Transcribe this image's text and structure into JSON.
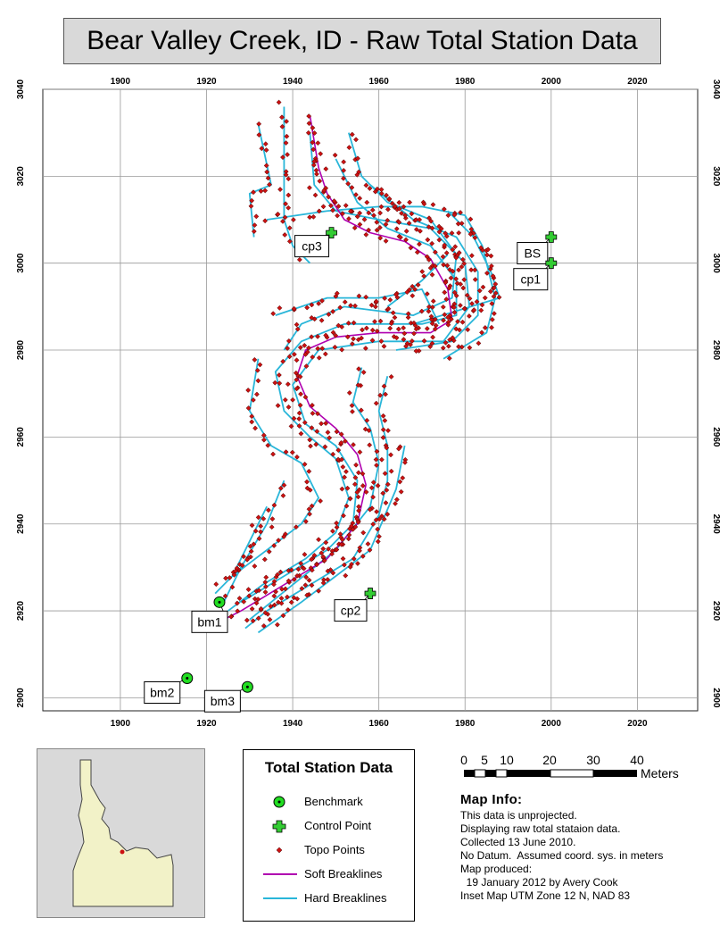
{
  "title": "Bear Valley Creek, ID - Raw Total Station Data",
  "map": {
    "x_ticks": [
      1900,
      1920,
      1940,
      1960,
      1980,
      2000,
      2020
    ],
    "y_ticks": [
      2900,
      2920,
      2940,
      2960,
      2980,
      3000,
      3020,
      3040
    ],
    "x_range": [
      1882,
      2034
    ],
    "y_range": [
      2897,
      3040
    ],
    "grid": true,
    "colors": {
      "benchmark": "#22dd22",
      "control": "#33cc33",
      "topo": "#cc1111",
      "soft": "#b000b0",
      "hard": "#29b6d9",
      "grid": "#999999"
    }
  },
  "benchmarks": [
    {
      "label": "bm1",
      "x": 1923,
      "y": 2922
    },
    {
      "label": "bm2",
      "x": 1915.5,
      "y": 2904.5
    },
    {
      "label": "bm3",
      "x": 1929.5,
      "y": 2902.5
    }
  ],
  "control_points": [
    {
      "label": "cp3",
      "x": 1949,
      "y": 3007
    },
    {
      "label": "BS",
      "x": 2000,
      "y": 3006
    },
    {
      "label": "cp1",
      "x": 2000,
      "y": 3000
    },
    {
      "label": "cp2",
      "x": 1958,
      "y": 2924
    }
  ],
  "soft_breakline": [
    [
      1944,
      3034
    ],
    [
      1946,
      3022
    ],
    [
      1948,
      3016
    ],
    [
      1952,
      3010
    ],
    [
      1958,
      3007
    ],
    [
      1966,
      3005
    ],
    [
      1972,
      3001
    ],
    [
      1976,
      2994
    ],
    [
      1977,
      2987
    ],
    [
      1972,
      2984
    ],
    [
      1960,
      2984
    ],
    [
      1950,
      2983
    ],
    [
      1943,
      2980
    ],
    [
      1941,
      2974
    ],
    [
      1944,
      2967
    ],
    [
      1950,
      2962
    ],
    [
      1955,
      2956
    ],
    [
      1957,
      2949
    ],
    [
      1955,
      2940
    ],
    [
      1948,
      2932
    ],
    [
      1938,
      2926
    ],
    [
      1928,
      2920
    ],
    [
      1924,
      2918
    ]
  ],
  "hard_breaklines": [
    [
      [
        1938,
        3036
      ],
      [
        1938,
        3010
      ],
      [
        1940,
        3004
      ],
      [
        1944,
        3000
      ]
    ],
    [
      [
        1932,
        3032
      ],
      [
        1935,
        3018
      ],
      [
        1930,
        3016
      ],
      [
        1931,
        3006
      ]
    ],
    [
      [
        1934,
        3010
      ],
      [
        1948,
        3012
      ],
      [
        1960,
        3013
      ],
      [
        1970,
        3013
      ],
      [
        1980,
        3011
      ],
      [
        1984,
        3004
      ],
      [
        1987,
        2992
      ],
      [
        1985,
        2984
      ],
      [
        1975,
        2978
      ]
    ],
    [
      [
        1958,
        3018
      ],
      [
        1968,
        3010
      ],
      [
        1978,
        3006
      ],
      [
        1983,
        2998
      ],
      [
        1983,
        2988
      ],
      [
        1977,
        2982
      ],
      [
        1964,
        2980
      ]
    ],
    [
      [
        1950,
        3024
      ],
      [
        1955,
        3014
      ],
      [
        1962,
        3008
      ],
      [
        1972,
        3004
      ],
      [
        1978,
        2996
      ],
      [
        1978,
        2988
      ],
      [
        1970,
        2986
      ],
      [
        1952,
        2986
      ],
      [
        1942,
        2982
      ],
      [
        1936,
        2975
      ],
      [
        1938,
        2966
      ],
      [
        1944,
        2960
      ],
      [
        1950,
        2955
      ],
      [
        1953,
        2946
      ],
      [
        1950,
        2938
      ],
      [
        1943,
        2932
      ],
      [
        1933,
        2926
      ],
      [
        1925,
        2920
      ]
    ],
    [
      [
        1944,
        3030
      ],
      [
        1945,
        3018
      ],
      [
        1950,
        3012
      ],
      [
        1960,
        3010
      ],
      [
        1972,
        3008
      ],
      [
        1980,
        3000
      ],
      [
        1981,
        2990
      ],
      [
        1975,
        2982
      ],
      [
        1960,
        2982
      ],
      [
        1946,
        2980
      ],
      [
        1940,
        2972
      ],
      [
        1943,
        2963
      ],
      [
        1950,
        2958
      ],
      [
        1955,
        2950
      ],
      [
        1954,
        2940
      ],
      [
        1948,
        2934
      ],
      [
        1938,
        2928
      ],
      [
        1928,
        2922
      ]
    ],
    [
      [
        1953,
        3030
      ],
      [
        1956,
        3020
      ],
      [
        1962,
        3014
      ],
      [
        1972,
        3010
      ],
      [
        1978,
        3002
      ],
      [
        1977,
        2992
      ],
      [
        1968,
        2988
      ],
      [
        1952,
        2990
      ],
      [
        1942,
        2986
      ],
      [
        1938,
        2980
      ]
    ],
    [
      [
        1936,
        2988
      ],
      [
        1948,
        2992
      ],
      [
        1960,
        2992
      ],
      [
        1970,
        2994
      ],
      [
        1974,
        2986
      ]
    ],
    [
      [
        1932,
        2978
      ],
      [
        1930,
        2966
      ],
      [
        1935,
        2958
      ],
      [
        1942,
        2954
      ],
      [
        1946,
        2946
      ],
      [
        1942,
        2940
      ],
      [
        1934,
        2934
      ],
      [
        1926,
        2928
      ],
      [
        1922,
        2924
      ]
    ],
    [
      [
        1962,
        2974
      ],
      [
        1960,
        2966
      ],
      [
        1962,
        2958
      ],
      [
        1962,
        2950
      ],
      [
        1960,
        2942
      ],
      [
        1954,
        2932
      ],
      [
        1944,
        2926
      ],
      [
        1934,
        2920
      ],
      [
        1929,
        2916
      ]
    ],
    [
      [
        1956,
        2976
      ],
      [
        1954,
        2968
      ],
      [
        1958,
        2962
      ],
      [
        1960,
        2954
      ],
      [
        1958,
        2944
      ],
      [
        1950,
        2934
      ],
      [
        1940,
        2926
      ],
      [
        1930,
        2918
      ]
    ],
    [
      [
        1966,
        2958
      ],
      [
        1964,
        2948
      ],
      [
        1958,
        2934
      ],
      [
        1950,
        2928
      ],
      [
        1942,
        2922
      ],
      [
        1932,
        2915
      ]
    ],
    [
      [
        1938,
        2950
      ],
      [
        1934,
        2940
      ],
      [
        1928,
        2930
      ],
      [
        1924,
        2922
      ]
    ],
    [
      [
        1926,
        2928
      ],
      [
        1930,
        2936
      ],
      [
        1934,
        2944
      ]
    ],
    [
      [
        1968,
        2986
      ],
      [
        1988,
        2992
      ],
      [
        1986,
        2998
      ],
      [
        1982,
        3006
      ],
      [
        1976,
        3012
      ]
    ],
    [
      [
        1962,
        2990
      ],
      [
        1970,
        2996
      ],
      [
        1976,
        3002
      ]
    ]
  ],
  "legend": {
    "title": "Total Station Data",
    "items": [
      "Benchmark",
      "Control Point",
      "Topo Points",
      "Soft Breaklines",
      "Hard Breaklines"
    ]
  },
  "scale_bar": {
    "labels": [
      "0",
      "5",
      "10",
      "20",
      "30",
      "40"
    ],
    "unit": "Meters"
  },
  "map_info": {
    "header": "Map Info:",
    "lines": [
      "This data is unprojected.",
      "Displaying raw total stataion data.",
      "Collected 13 June 2010.",
      "No Datum.  Assumed coord. sys. in meters",
      "Map produced:",
      "  19 January 2012 by Avery Cook",
      "Inset Map UTM Zone 12 N, NAD 83"
    ]
  }
}
